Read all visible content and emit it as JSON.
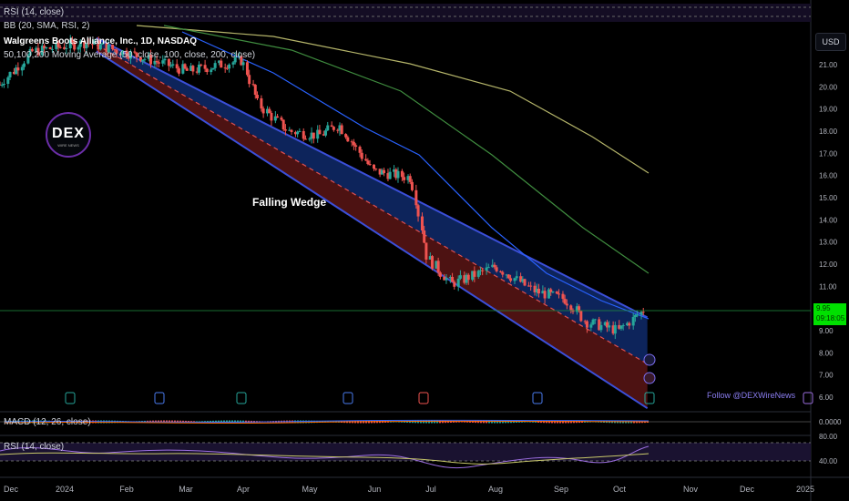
{
  "legends": {
    "top_rsi": "RSI (14, close)",
    "bb": "BB (20, SMA, RSI, 2)",
    "title": "Walgreens Boots Alliance, Inc., 1D, NASDAQ",
    "ma": "50,100,200 Moving Average (50, close, 100, close, 200, close)",
    "macd": "MACD (12, 26, close)",
    "rsi": "RSI (14, close)"
  },
  "currency": "USD",
  "annotation": "Falling Wedge",
  "follow": "Follow @DEXWireNews",
  "logo": {
    "main": "DEX",
    "sub": "WIRE NEWS"
  },
  "last_price": {
    "value": "9.95",
    "countdown": "09:18:05"
  },
  "colors": {
    "up": "#26a69a",
    "down": "#ef5350",
    "wedge_top": "#3b4fd8",
    "wedge_fill_top": "#0f2a6b",
    "wedge_fill_bottom": "#5a1515",
    "ma50": "#2962ff",
    "ma100": "#3f8c3f",
    "ma200": "#b5b56a",
    "rsi": "#9c6ee0"
  },
  "chart_data": {
    "type": "candlestick",
    "x_ticks": [
      "Dec",
      "2024",
      "Feb",
      "Mar",
      "Apr",
      "May",
      "Jun",
      "Jul",
      "Aug",
      "Sep",
      "Oct",
      "Nov",
      "Dec",
      "2025"
    ],
    "y_ticks": [
      "21.00",
      "20.00",
      "19.00",
      "18.00",
      "17.00",
      "16.00",
      "15.00",
      "14.00",
      "13.00",
      "12.00",
      "11.00",
      "9.00",
      "8.00",
      "7.00",
      "6.00"
    ],
    "macd_ticks": [
      "0.0000"
    ],
    "rsi_ticks": [
      "80.00",
      "40.00"
    ],
    "ylim": [
      5.5,
      22.5
    ],
    "close_path": [
      {
        "x": "2023-11-28",
        "close": 20.1
      },
      {
        "x": "2023-12-15",
        "close": 21.6
      },
      {
        "x": "2024-01-10",
        "close": 22.0
      },
      {
        "x": "2024-02-01",
        "close": 21.5
      },
      {
        "x": "2024-03-01",
        "close": 20.7
      },
      {
        "x": "2024-03-28",
        "close": 21.2
      },
      {
        "x": "2024-04-05",
        "close": 19.2
      },
      {
        "x": "2024-04-20",
        "close": 18.0
      },
      {
        "x": "2024-05-05",
        "close": 17.8
      },
      {
        "x": "2024-05-15",
        "close": 18.3
      },
      {
        "x": "2024-06-01",
        "close": 16.2
      },
      {
        "x": "2024-06-20",
        "close": 15.9
      },
      {
        "x": "2024-06-28",
        "close": 12.3
      },
      {
        "x": "2024-07-10",
        "close": 11.1
      },
      {
        "x": "2024-08-01",
        "close": 11.9
      },
      {
        "x": "2024-08-20",
        "close": 10.8
      },
      {
        "x": "2024-09-05",
        "close": 10.4
      },
      {
        "x": "2024-09-15",
        "close": 9.4
      },
      {
        "x": "2024-10-01",
        "close": 9.0
      },
      {
        "x": "2024-10-14",
        "close": 9.95
      }
    ],
    "wedge": {
      "upper": [
        {
          "x": "2024-01-15",
          "y": 22.2
        },
        {
          "x": "2024-10-15",
          "y": 9.6
        }
      ],
      "lower": [
        {
          "x": "2024-01-15",
          "y": 21.6
        },
        {
          "x": "2024-10-15",
          "y": 5.5
        }
      ],
      "mid": [
        {
          "x": "2024-01-15",
          "y": 21.9
        },
        {
          "x": "2024-10-15",
          "y": 7.5
        }
      ]
    },
    "moving_averages": [
      {
        "period": 50,
        "end_value": 10.0
      },
      {
        "period": 100,
        "end_value": 11.5
      },
      {
        "period": 200,
        "end_value": 16.1
      }
    ]
  }
}
